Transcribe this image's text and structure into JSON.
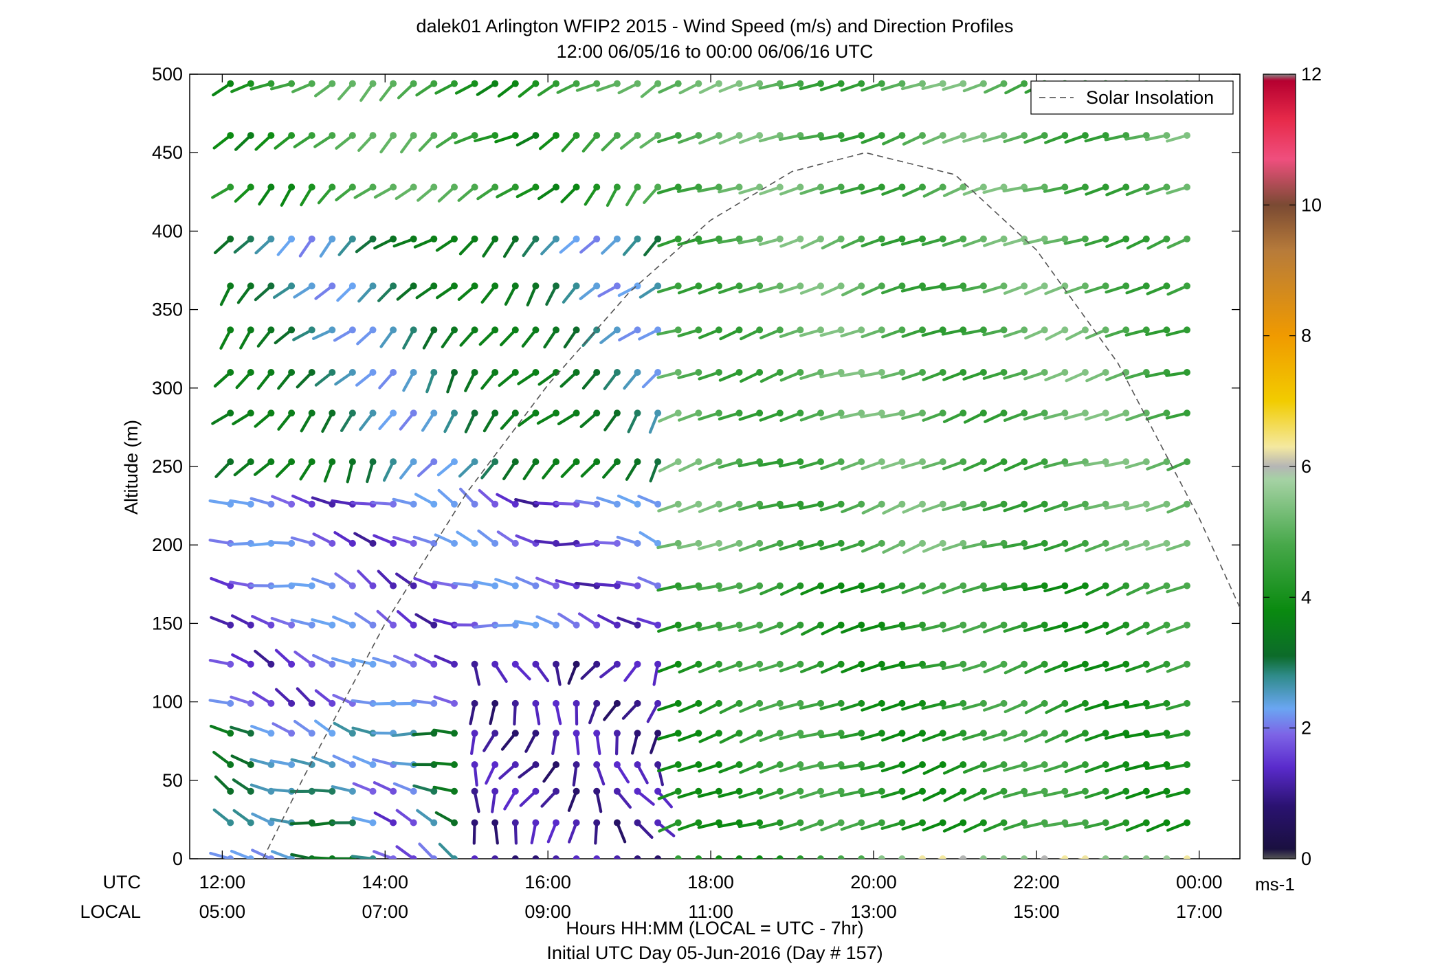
{
  "chart_data": {
    "type": "wind-barb profile",
    "title": "dalek01 Arlington WFIP2 2015 - Wind Speed (m/s) and Direction Profiles",
    "subtitle": "12:00 06/05/16 to 00:00 06/06/16  UTC",
    "ylabel": "Altitude (m)",
    "xlabel": "Hours HH:MM  (LOCAL = UTC - 7hr)",
    "xlabel2": "Initial UTC Day 05-Jun-2016 (Day # 157)",
    "row_label_utc": "UTC",
    "row_label_local": "LOCAL",
    "ylim": [
      0,
      500
    ],
    "y_ticks": [
      "0",
      "50",
      "100",
      "150",
      "200",
      "250",
      "300",
      "350",
      "400",
      "450",
      "500"
    ],
    "x_range_utc_hours": [
      11.6,
      24.5
    ],
    "x_ticks": [
      {
        "utc_hour": 12,
        "utc": "12:00",
        "local": "05:00"
      },
      {
        "utc_hour": 14,
        "utc": "14:00",
        "local": "07:00"
      },
      {
        "utc_hour": 16,
        "utc": "16:00",
        "local": "09:00"
      },
      {
        "utc_hour": 18,
        "utc": "18:00",
        "local": "11:00"
      },
      {
        "utc_hour": 20,
        "utc": "20:00",
        "local": "13:00"
      },
      {
        "utc_hour": 22,
        "utc": "22:00",
        "local": "15:00"
      },
      {
        "utc_hour": 24,
        "utc": "00:00",
        "local": "17:00"
      }
    ],
    "legend": {
      "entries": [
        "Solar Insolation"
      ],
      "position": "top-right",
      "style": "dashed"
    },
    "colorbar": {
      "min": 0,
      "max": 12,
      "ticks": [
        "0",
        "2",
        "4",
        "6",
        "8",
        "10",
        "12"
      ],
      "unit": "ms-1",
      "stops": [
        [
          0.0,
          "#555555"
        ],
        [
          0.15,
          "#1a1040"
        ],
        [
          0.8,
          "#2a1270"
        ],
        [
          1.4,
          "#5a2bcc"
        ],
        [
          1.9,
          "#7d64e6"
        ],
        [
          2.3,
          "#6aa6f2"
        ],
        [
          2.8,
          "#2f8b8a"
        ],
        [
          3.1,
          "#0c6b2a"
        ],
        [
          3.8,
          "#0a8a10"
        ],
        [
          4.8,
          "#47a84a"
        ],
        [
          5.8,
          "#a5d2a4"
        ],
        [
          6.0,
          "#b5b5b5"
        ],
        [
          6.3,
          "#f4e9a0"
        ],
        [
          7.0,
          "#f2cc00"
        ],
        [
          8.0,
          "#f09a00"
        ],
        [
          9.3,
          "#b77b3a"
        ],
        [
          10.0,
          "#7a4a33"
        ],
        [
          10.7,
          "#ef4f7e"
        ],
        [
          11.3,
          "#e72a4a"
        ],
        [
          11.9,
          "#b50030"
        ],
        [
          12.0,
          "#888888"
        ]
      ]
    },
    "solar_insolation_curve": {
      "type": "line",
      "x_utc_hours": [
        12.5,
        13.0,
        14.0,
        15.0,
        16.0,
        17.0,
        18.0,
        19.0,
        19.9,
        21.0,
        22.0,
        23.0,
        24.0,
        24.5
      ],
      "y_m": [
        0,
        52,
        150,
        233,
        302,
        361,
        407,
        438,
        450,
        436,
        388,
        316,
        217,
        160
      ]
    },
    "altitudes_m": [
      0,
      23,
      43,
      60,
      80,
      99,
      124,
      149,
      174,
      201,
      226,
      253,
      284,
      310,
      337,
      365,
      395,
      428,
      461,
      494
    ],
    "time_range_utc_hours": [
      12.1,
      24.0
    ],
    "barb_interval_hours": 0.25,
    "barb_field_description": "Wind direction (deg, from) and speed (m/s) per altitude/time; morning (12:00–17:30 UTC) light winds 0.5–2.5 m/s veering from NW through S, afternoon (after ~18:00 UTC) steady westerly flow ~4–5.5 m/s aloft.",
    "barb_regimes": [
      {
        "utc_start": 12.0,
        "utc_end": 17.5,
        "altitude_max": 240,
        "dir_deg": 290,
        "speed_ms": 1.2
      },
      {
        "utc_start": 15.0,
        "utc_end": 17.5,
        "altitude_max": 130,
        "dir_deg": 180,
        "speed_ms": 0.8
      },
      {
        "utc_start": 12.0,
        "utc_end": 17.5,
        "altitude_min": 240,
        "altitude_max": 500,
        "dir_deg": 230,
        "speed_ms": 2.5
      },
      {
        "utc_start": 17.5,
        "utc_end": 24.0,
        "altitude_max": 500,
        "dir_deg": 255,
        "speed_ms": 4.6
      }
    ]
  }
}
